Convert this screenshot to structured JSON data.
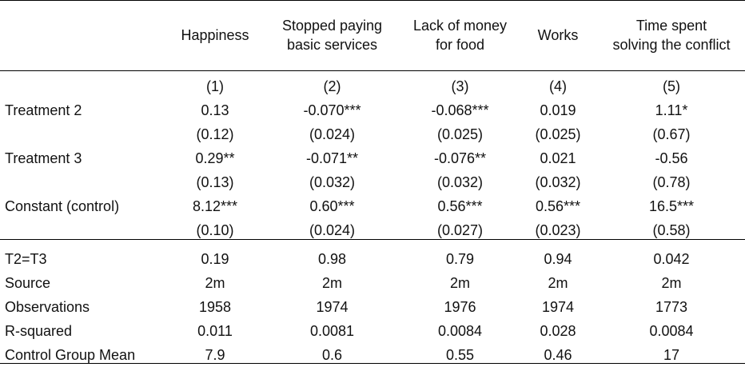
{
  "columns": [
    {
      "line1": "Happiness",
      "line2": ""
    },
    {
      "line1": "Stopped paying",
      "line2": "basic services"
    },
    {
      "line1": "Lack of money",
      "line2": "for food"
    },
    {
      "line1": "Works",
      "line2": ""
    },
    {
      "line1": "Time spent",
      "line2": "solving the conflict"
    }
  ],
  "column_numbers": [
    "(1)",
    "(2)",
    "(3)",
    "(4)",
    "(5)"
  ],
  "coefficients": [
    {
      "label": "Treatment 2",
      "values": [
        "0.13",
        "-0.070***",
        "-0.068***",
        "0.019",
        "1.11*"
      ],
      "se": [
        "(0.12)",
        "(0.024)",
        "(0.025)",
        "(0.025)",
        "(0.67)"
      ]
    },
    {
      "label": "Treatment 3",
      "values": [
        "0.29**",
        "-0.071**",
        "-0.076**",
        "0.021",
        "-0.56"
      ],
      "se": [
        "(0.13)",
        "(0.032)",
        "(0.032)",
        "(0.032)",
        "(0.78)"
      ]
    },
    {
      "label": "Constant (control)",
      "values": [
        "8.12***",
        "0.60***",
        "0.56***",
        "0.56***",
        "16.5***"
      ],
      "se": [
        "(0.10)",
        "(0.024)",
        "(0.027)",
        "(0.023)",
        "(0.58)"
      ]
    }
  ],
  "stats": [
    {
      "label": "T2=T3",
      "values": [
        "0.19",
        "0.98",
        "0.79",
        "0.94",
        "0.042"
      ]
    },
    {
      "label": "Source",
      "values": [
        "2m",
        "2m",
        "2m",
        "2m",
        "2m"
      ]
    },
    {
      "label": "Observations",
      "values": [
        "1958",
        "1974",
        "1976",
        "1974",
        "1773"
      ]
    },
    {
      "label": "R-squared",
      "values": [
        "0.011",
        "0.0081",
        "0.0084",
        "0.028",
        "0.0084"
      ]
    },
    {
      "label": "Control Group Mean",
      "values": [
        "7.9",
        "0.6",
        "0.55",
        "0.46",
        "17"
      ]
    }
  ]
}
